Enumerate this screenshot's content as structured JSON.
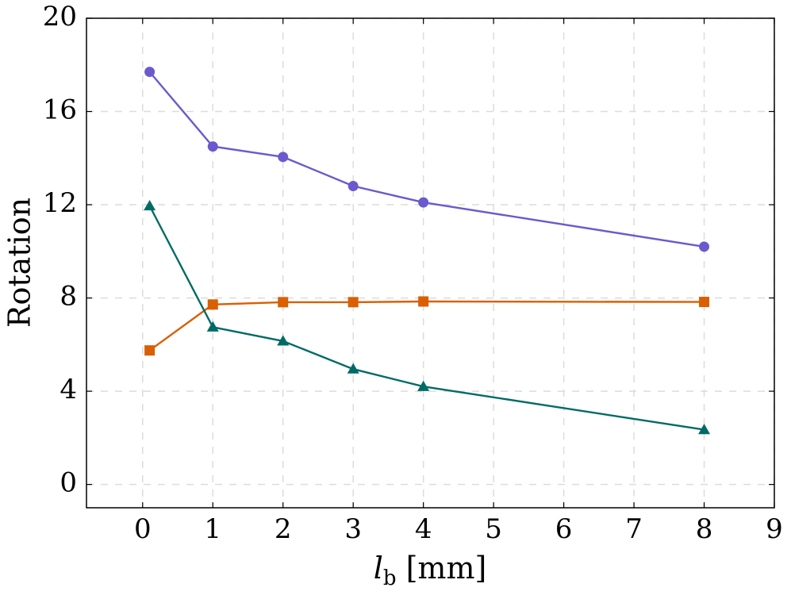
{
  "chart_data": {
    "type": "line",
    "title": "",
    "xlabel": "l_b [mm]",
    "xlabel_parts": {
      "main": "l",
      "sub": "b",
      "unit": " [mm]"
    },
    "ylabel": "Rotation",
    "xlim": [
      -0.8,
      9
    ],
    "ylim": [
      -1,
      20
    ],
    "xticks": [
      0,
      1,
      2,
      3,
      4,
      5,
      6,
      7,
      8,
      9
    ],
    "yticks": [
      0,
      4,
      8,
      12,
      16,
      20
    ],
    "grid": true,
    "legend": "none",
    "series": [
      {
        "color": "#6a5acd",
        "marker": "circle",
        "x": [
          0.1,
          1,
          2,
          3,
          4,
          8
        ],
        "y": [
          17.7,
          14.5,
          14.05,
          12.8,
          12.1,
          10.2
        ]
      },
      {
        "color": "#d95f02",
        "marker": "square",
        "x": [
          0.1,
          1,
          2,
          3,
          4,
          8
        ],
        "y": [
          5.75,
          7.72,
          7.82,
          7.82,
          7.85,
          7.83
        ]
      },
      {
        "color": "#006b66",
        "marker": "triangle",
        "x": [
          0.1,
          1,
          2,
          3,
          4,
          8
        ],
        "y": [
          11.95,
          6.75,
          6.15,
          4.95,
          4.2,
          2.35
        ]
      }
    ]
  }
}
